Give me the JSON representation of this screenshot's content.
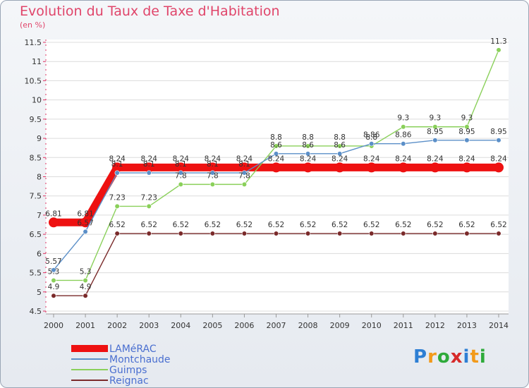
{
  "chart_data": {
    "type": "line",
    "title": "Evolution du Taux de Taxe d'Habitation",
    "subtitle": "(en %)",
    "ylabel": "",
    "xlabel": "",
    "ylim": [
      4.5,
      11.5
    ],
    "yticks": [
      "4.5",
      "5",
      "5.5",
      "6",
      "6.5",
      "7",
      "7.5",
      "8",
      "8.5",
      "9",
      "9.5",
      "10",
      "10.5",
      "11",
      "11.5"
    ],
    "categories": [
      "2000",
      "2001",
      "2002",
      "2003",
      "2004",
      "2005",
      "2006",
      "2007",
      "2008",
      "2009",
      "2010",
      "2011",
      "2012",
      "2013",
      "2014"
    ],
    "series": [
      {
        "name": "LAMéRAC",
        "color": "#ee1111",
        "values": [
          6.81,
          6.81,
          8.24,
          8.24,
          8.24,
          8.24,
          8.24,
          8.24,
          8.24,
          8.24,
          8.24,
          8.24,
          8.24,
          8.24,
          8.24
        ],
        "labels": [
          "6.81",
          "6.81",
          "8.24",
          "8.24",
          "8.24",
          "8.24",
          "8.24",
          "8.24",
          "8.24",
          "8.24",
          "8.24",
          "8.24",
          "8.24",
          "8.24",
          "8.24"
        ]
      },
      {
        "name": "Montchaude",
        "color": "#5b8fc8",
        "values": [
          5.57,
          6.57,
          8.1,
          8.1,
          8.1,
          8.1,
          8.1,
          8.6,
          8.6,
          8.6,
          8.86,
          8.86,
          8.95,
          8.95,
          8.95
        ],
        "labels": [
          "5.57",
          "6.57",
          "8.1",
          "8.1",
          "8.1",
          "8.1",
          "8.1",
          "8.6",
          "8.6",
          "8.6",
          "8.86",
          "8.86",
          "8.95",
          "8.95",
          "8.95"
        ]
      },
      {
        "name": "Guimps",
        "color": "#8ad05a",
        "values": [
          5.3,
          5.3,
          7.23,
          7.23,
          7.8,
          7.8,
          7.8,
          8.8,
          8.8,
          8.8,
          8.8,
          9.3,
          9.3,
          9.3,
          11.3
        ],
        "labels": [
          "5.3",
          "5.3",
          "7.23",
          "7.23",
          "7.8",
          "7.8",
          "7.8",
          "8.8",
          "8.8",
          "8.8",
          "8.8",
          "9.3",
          "9.3",
          "9.3",
          "11.3"
        ]
      },
      {
        "name": "Reignac",
        "color": "#7a2a2a",
        "values": [
          4.9,
          4.9,
          6.52,
          6.52,
          6.52,
          6.52,
          6.52,
          6.52,
          6.52,
          6.52,
          6.52,
          6.52,
          6.52,
          6.52,
          6.52
        ],
        "labels": [
          "4.9",
          "4.9",
          "6.52",
          "6.52",
          "6.52",
          "6.52",
          "6.52",
          "6.52",
          "6.52",
          "6.52",
          "6.52",
          "6.52",
          "6.52",
          "6.52",
          "6.52"
        ]
      }
    ]
  },
  "logo": {
    "text": "Proxiti",
    "letters": [
      "P",
      "r",
      "o",
      "x",
      "i",
      "t",
      "i"
    ],
    "colors": [
      "#2e7fd4",
      "#f29a1a",
      "#2eaa3a",
      "#d62a2a",
      "#2e7fd4",
      "#f29a1a",
      "#2eaa3a"
    ]
  }
}
